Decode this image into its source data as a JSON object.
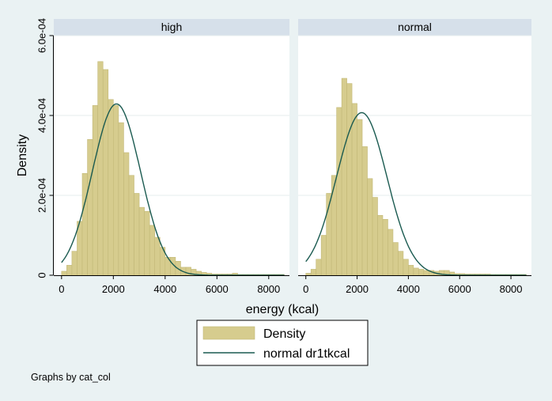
{
  "chart_data": {
    "type": "histogram",
    "ylabel": "Density",
    "xlabel": "energy (kcal)",
    "ylim": [
      0,
      0.0006
    ],
    "xlim": [
      -300,
      8800
    ],
    "x_ticks": [
      0,
      2000,
      4000,
      6000,
      8000
    ],
    "x_tick_labels": [
      "0",
      "2000",
      "4000",
      "6000",
      "8000"
    ],
    "y_ticks": [
      0,
      0.0002,
      0.0004,
      0.0006
    ],
    "y_tick_labels": [
      "0",
      "2.0e-04",
      "4.0e-04",
      "6.0e-04"
    ],
    "grid": true,
    "legend": {
      "placement": "bottom",
      "items": [
        {
          "label": "Density",
          "type": "bar",
          "color": "#d6cc8e"
        },
        {
          "label": "normal dr1tkcal",
          "type": "line",
          "color": "#1a5a50"
        }
      ]
    },
    "colors": {
      "bar_fill": "#d6cc8e",
      "bar_edge": "#c2b877",
      "curve": "#1a5a50",
      "panel_header": "#d6e0ea"
    },
    "bin_start": 0,
    "bin_width": 200,
    "panels": [
      {
        "title": "high",
        "density": [
          1e-05,
          2.5e-05,
          6e-05,
          0.000135,
          0.000255,
          0.00034,
          0.000425,
          0.000535,
          0.000515,
          0.00044,
          0.000425,
          0.000382,
          0.000307,
          0.00025,
          0.000205,
          0.00017,
          0.00016,
          0.000125,
          9.5e-05,
          7e-05,
          4.5e-05,
          4.5e-05,
          3.5e-05,
          2e-05,
          2e-05,
          1.5e-05,
          1e-05,
          7e-06,
          5e-06,
          3e-06,
          3e-06,
          3e-06,
          3e-06,
          5e-06,
          2e-06,
          2e-06,
          2e-06,
          2e-06,
          2e-06,
          2e-06,
          2e-06,
          2e-06,
          2e-06
        ],
        "normal_mean": 2120,
        "normal_sd": 930
      },
      {
        "title": "normal",
        "density": [
          5e-06,
          1.5e-05,
          4e-05,
          0.0001,
          0.000205,
          0.00025,
          0.00042,
          0.000493,
          0.00048,
          0.00043,
          0.00039,
          0.000322,
          0.000242,
          0.000195,
          0.00015,
          0.00014,
          0.000115,
          8.2e-05,
          6e-05,
          4e-05,
          2.5e-05,
          1.8e-05,
          1.5e-05,
          1.2e-05,
          1.2e-05,
          1e-05,
          1.2e-05,
          1.2e-05,
          8e-06,
          4e-06,
          4e-06,
          3e-06,
          3e-06,
          3e-06,
          3e-06,
          3e-06,
          2e-06,
          2e-06,
          2e-06,
          2e-06,
          2e-06,
          2e-06,
          2e-06
        ],
        "normal_mean": 2180,
        "normal_sd": 980
      }
    ]
  },
  "note": "Graphs by cat_col"
}
